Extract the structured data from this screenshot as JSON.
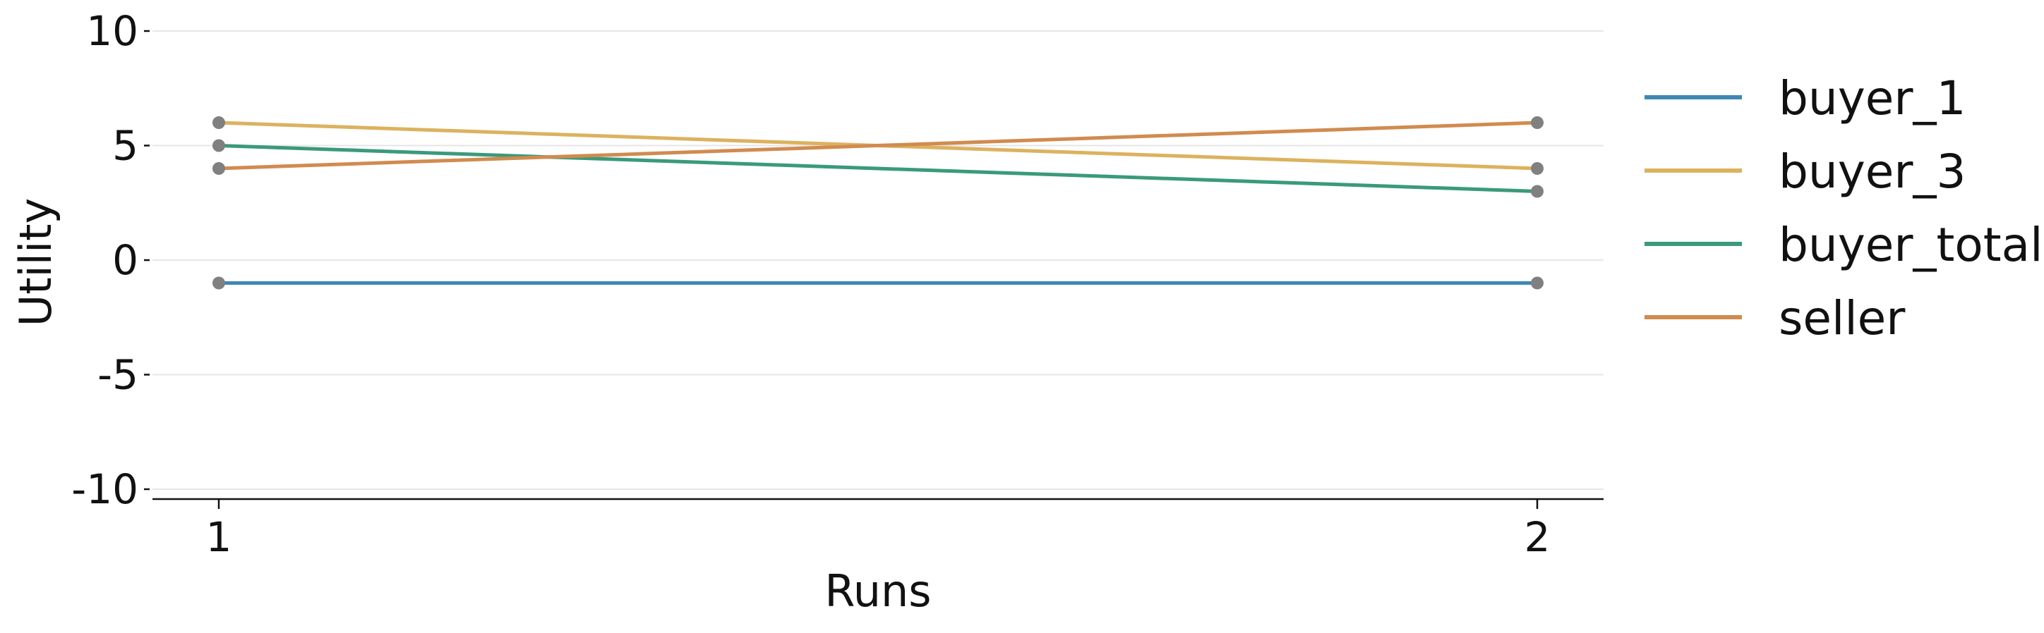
{
  "chart_data": {
    "type": "line",
    "title": "",
    "xlabel": "Runs",
    "ylabel": "Utility",
    "x": [
      1,
      2
    ],
    "xticks": [
      "1",
      "2"
    ],
    "yticks": [
      "10",
      "5",
      "0",
      "-5",
      "-10"
    ],
    "ytick_values": [
      10,
      5,
      0,
      -5,
      -10
    ],
    "ylim": [
      -10,
      10
    ],
    "grid": "horizontal",
    "legend_position": "right",
    "marker_color": "#808080",
    "series": [
      {
        "name": "buyer_1",
        "color": "#3f88b4",
        "values": [
          -1,
          -1
        ]
      },
      {
        "name": "buyer_3",
        "color": "#dcb25f",
        "values": [
          6,
          4
        ]
      },
      {
        "name": "buyer_total",
        "color": "#3a9a7b",
        "values": [
          5,
          3
        ]
      },
      {
        "name": "seller",
        "color": "#d18b4f",
        "values": [
          4,
          6
        ]
      }
    ]
  }
}
